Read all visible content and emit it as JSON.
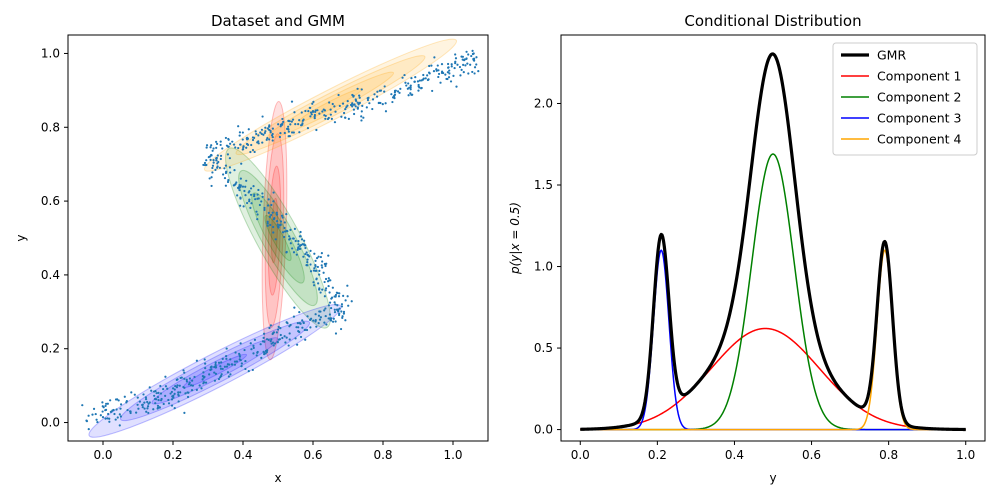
{
  "chart_data": [
    {
      "type": "scatter",
      "title": "Dataset and GMM",
      "xlabel": "x",
      "ylabel": "y",
      "xlim": [
        -0.1,
        1.1
      ],
      "ylim": [
        -0.05,
        1.05
      ],
      "xticks": [
        "0.0",
        "0.2",
        "0.4",
        "0.6",
        "0.8",
        "1.0"
      ],
      "yticks": [
        "0.0",
        "0.2",
        "0.4",
        "0.6",
        "0.8",
        "1.0"
      ],
      "grid": false,
      "scatter_color": "#1f77b4",
      "dataset_path": [
        [
          -0.05,
          0.01
        ],
        [
          0.2,
          0.08
        ],
        [
          0.6,
          0.28
        ],
        [
          0.69,
          0.3
        ],
        [
          0.6,
          0.45
        ],
        [
          0.35,
          0.68
        ],
        [
          0.3,
          0.72
        ],
        [
          0.5,
          0.8
        ],
        [
          0.8,
          0.88
        ],
        [
          1.07,
          0.99
        ]
      ],
      "ellipses": [
        {
          "component": 1,
          "color": "#ff0000",
          "center": [
            0.49,
            0.52
          ],
          "semi_axes": [
            0.35,
            0.033
          ],
          "angle_deg": 88
        },
        {
          "component": 2,
          "color": "#008000",
          "center": [
            0.5,
            0.5
          ],
          "semi_axes": [
            0.28,
            0.06
          ],
          "angle_deg": -60
        },
        {
          "component": 3,
          "color": "#0000ff",
          "center": [
            0.32,
            0.14
          ],
          "semi_axes": [
            0.4,
            0.045
          ],
          "angle_deg": 26
        },
        {
          "component": 4,
          "color": "#ffa500",
          "center": [
            0.65,
            0.86
          ],
          "semi_axes": [
            0.4,
            0.04
          ],
          "angle_deg": 26
        }
      ]
    },
    {
      "type": "line",
      "title": "Conditional Distribution",
      "xlabel": "y",
      "ylabel": "p(y|x = 0.5)",
      "xlim": [
        -0.05,
        1.05
      ],
      "ylim": [
        -0.07,
        2.42
      ],
      "xticks": [
        "0.0",
        "0.2",
        "0.4",
        "0.6",
        "0.8",
        "1.0"
      ],
      "yticks": [
        "0.0",
        "0.5",
        "1.0",
        "1.5",
        "2.0"
      ],
      "grid": false,
      "legend": "top-right",
      "series": [
        {
          "name": "GMR",
          "color": "#000000",
          "width": 3.2,
          "components": [
            1,
            2,
            3,
            4
          ]
        },
        {
          "name": "Component 1",
          "color": "#ff0000",
          "width": 1.5,
          "mean": 0.48,
          "std": 0.14,
          "weight": 0.62
        },
        {
          "name": "Component 2",
          "color": "#008000",
          "width": 1.5,
          "mean": 0.5,
          "std": 0.055,
          "weight": 1.69
        },
        {
          "name": "Component 3",
          "color": "#0000ff",
          "width": 1.5,
          "mean": 0.21,
          "std": 0.02,
          "weight": 1.1
        },
        {
          "name": "Component 4",
          "color": "#ffa500",
          "width": 1.5,
          "mean": 0.79,
          "std": 0.02,
          "weight": 1.1
        }
      ]
    }
  ]
}
